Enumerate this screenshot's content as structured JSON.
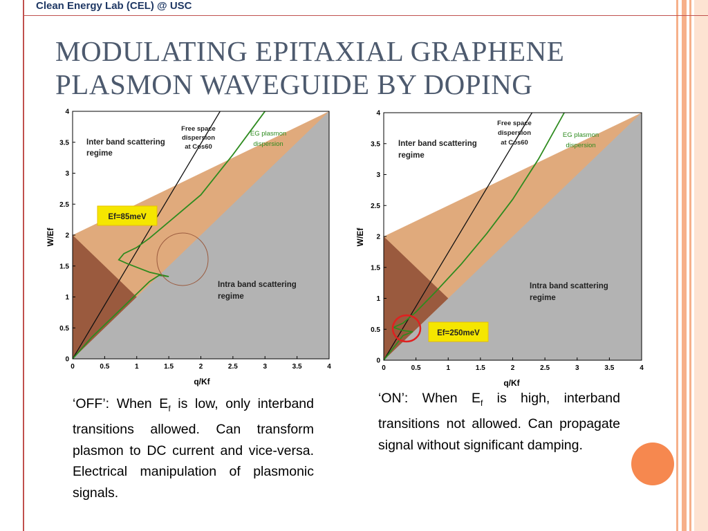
{
  "header": {
    "label": "Clean Energy Lab (CEL) @ USC"
  },
  "title": {
    "line1": "MODULATING EPITAXIAL GRAPHENE",
    "line2": "PLASMON WAVEGUIDE BY DOPING"
  },
  "colors": {
    "accent_red": "#c0504d",
    "stripe_orange": "#f6b08a",
    "deco_circle": "#f6884f",
    "interband_region": "#e0aa7c",
    "dark_triangle": "#9a5a3e",
    "intraband_region": "#b3b3b3",
    "plasmon_curve": "#2e8b1f",
    "highlight_box": "#f5e600"
  },
  "chart_data": [
    {
      "type": "line",
      "xlabel": "q/Kf",
      "ylabel": "W/Ef",
      "xlim": [
        0,
        4
      ],
      "ylim": [
        0,
        4
      ],
      "xticks": [
        "0",
        "0.5",
        "1",
        "1.5",
        "2",
        "2.5",
        "3",
        "3.5",
        "4"
      ],
      "yticks": [
        "0",
        "0.5",
        "1",
        "1.5",
        "2",
        "2.5",
        "3",
        "3.5",
        "4"
      ],
      "grid": false,
      "annotations": {
        "interband": [
          "Inter band scattering",
          "regime"
        ],
        "intraband": [
          "Intra band scattering",
          "regime"
        ],
        "freespace": [
          "Free space",
          "dispersion",
          "at Cos60"
        ],
        "plasmon": [
          "EG plasmon",
          "dispersion"
        ],
        "ef_box": "Ef=85meV"
      },
      "freespace_line": {
        "x": [
          0,
          2.3
        ],
        "y": [
          0,
          4
        ]
      },
      "regions": {
        "intraband_boundary": {
          "x": [
            0,
            4
          ],
          "y": [
            0,
            4
          ]
        },
        "interband_boundary": {
          "x": [
            0,
            4
          ],
          "y": [
            2,
            4
          ]
        },
        "dark_triangle": {
          "x": [
            0,
            0,
            1
          ],
          "y": [
            0,
            2,
            1
          ]
        }
      },
      "series": [
        {
          "x": [
            0,
            0.3,
            0.6,
            0.8,
            1.0,
            1.2,
            1.35,
            1.5,
            1.2,
            1.0,
            0.85,
            0.72,
            0.8,
            1.0,
            1.2,
            1.6,
            2.0,
            2.5,
            3.0
          ],
          "y": [
            0,
            0.35,
            0.65,
            0.85,
            1.05,
            1.25,
            1.35,
            1.33,
            1.4,
            1.48,
            1.54,
            1.6,
            1.7,
            1.8,
            1.95,
            2.3,
            2.65,
            3.3,
            4.0
          ]
        }
      ]
    },
    {
      "type": "line",
      "xlabel": "q/Kf",
      "ylabel": "W/Ef",
      "xlim": [
        0,
        4
      ],
      "ylim": [
        0,
        4
      ],
      "xticks": [
        "0",
        "0.5",
        "1",
        "1.5",
        "2",
        "2.5",
        "3",
        "3.5",
        "4"
      ],
      "yticks": [
        "0",
        "0.5",
        "1",
        "1.5",
        "2",
        "2.5",
        "3",
        "3.5",
        "4"
      ],
      "grid": false,
      "annotations": {
        "interband": [
          "Inter band scattering",
          "regime"
        ],
        "intraband": [
          "Intra band scattering",
          "regime"
        ],
        "freespace": [
          "Free space",
          "dispersion",
          "at Cos60"
        ],
        "plasmon": [
          "EG plasmon",
          "dispersion"
        ],
        "ef_box": "Ef=250meV"
      },
      "freespace_line": {
        "x": [
          0,
          2.3
        ],
        "y": [
          0,
          4
        ]
      },
      "regions": {
        "intraband_boundary": {
          "x": [
            0,
            4
          ],
          "y": [
            0,
            4
          ]
        },
        "interband_boundary": {
          "x": [
            0,
            4
          ],
          "y": [
            2,
            4
          ]
        },
        "dark_triangle": {
          "x": [
            0,
            0,
            1
          ],
          "y": [
            0,
            2,
            1
          ]
        }
      },
      "series": [
        {
          "x": [
            0,
            0.15,
            0.3,
            0.45,
            0.3,
            0.15,
            0.3,
            0.5,
            0.8,
            1.2,
            1.6,
            2.0,
            2.4,
            2.8
          ],
          "y": [
            0,
            0.2,
            0.4,
            0.46,
            0.48,
            0.53,
            0.6,
            0.78,
            1.1,
            1.55,
            2.05,
            2.6,
            3.25,
            4.0
          ]
        }
      ]
    }
  ],
  "captions": {
    "off": {
      "quote": "‘OFF’: When E",
      "sub": "f",
      "rest": " is low, only interband transitions allowed. Can transform plasmon to DC current and vice-versa. Electrical manipulation of plasmonic signals."
    },
    "on": {
      "quote": "‘ON’: When E",
      "sub": "f",
      "rest": " is high, interband transitions not allowed. Can propagate signal without significant damping."
    }
  }
}
